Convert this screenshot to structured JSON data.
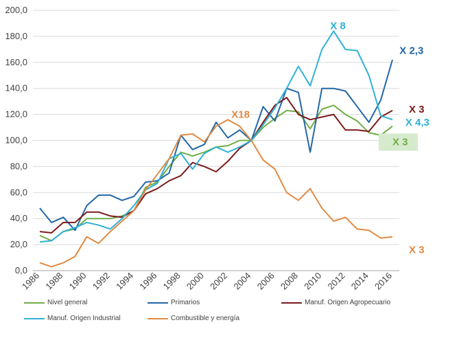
{
  "chart_data": {
    "type": "line",
    "title": "",
    "xlabel": "",
    "ylabel": "",
    "ylim": [
      0,
      200
    ],
    "y_ticks": [
      "0,0",
      "20,0",
      "40,0",
      "60,0",
      "80,0",
      "100,0",
      "120,0",
      "140,0",
      "160,0",
      "180,0",
      "200,0"
    ],
    "x_tick_labels": [
      "1986",
      "1988",
      "1990",
      "1992",
      "1994",
      "1996",
      "1998",
      "2000",
      "2002",
      "2004",
      "2006",
      "2008",
      "2010",
      "2012",
      "2014",
      "2016"
    ],
    "x": [
      1986,
      1987,
      1988,
      1989,
      1990,
      1991,
      1992,
      1993,
      1994,
      1995,
      1996,
      1997,
      1998,
      1999,
      2000,
      2001,
      2002,
      2003,
      2004,
      2005,
      2006,
      2007,
      2008,
      2009,
      2010,
      2011,
      2012,
      2013,
      2014,
      2015,
      2016
    ],
    "grid": true,
    "legend_position": "bottom",
    "series": [
      {
        "name": "Nivel general",
        "color": "#70ad47",
        "values": [
          27,
          23,
          30,
          32,
          40,
          40,
          40,
          42,
          46,
          64,
          68,
          80,
          91,
          88,
          91,
          95,
          96,
          100,
          100,
          110,
          117,
          123,
          122,
          109,
          124,
          127,
          120,
          115,
          106,
          104,
          111
        ]
      },
      {
        "name": "Primarios",
        "color": "#2266a6",
        "values": [
          48,
          37,
          41,
          31,
          50,
          58,
          58,
          54,
          57,
          68,
          69,
          75,
          104,
          93,
          97,
          114,
          102,
          108,
          100,
          126,
          115,
          140,
          137,
          91,
          140,
          140,
          138,
          126,
          114,
          131,
          162
        ]
      },
      {
        "name": "Manuf. Origen Agropecuario",
        "color": "#7b1a1a",
        "values": [
          30,
          29,
          37,
          37,
          45,
          45,
          42,
          41,
          46,
          59,
          63,
          69,
          73,
          83,
          80,
          76,
          84,
          94,
          100,
          114,
          127,
          133,
          120,
          116,
          118,
          120,
          108,
          108,
          107,
          118,
          123
        ]
      },
      {
        "name": "Manuf. Origen Industrial",
        "color": "#2fb1d6",
        "values": [
          22,
          23,
          30,
          33,
          37,
          35,
          32,
          40,
          50,
          62,
          67,
          86,
          90,
          78,
          90,
          95,
          91,
          95,
          100,
          112,
          125,
          140,
          157,
          142,
          170,
          184,
          170,
          169,
          150,
          119,
          116
        ]
      },
      {
        "name": "Combustible y energía",
        "color": "#e08a43",
        "values": [
          6,
          3,
          6,
          11,
          26,
          21,
          30,
          38,
          46,
          62,
          74,
          86,
          104,
          105,
          99,
          111,
          116,
          111,
          100,
          85,
          78,
          60,
          54,
          63,
          48,
          38,
          41,
          32,
          31,
          25,
          26
        ]
      }
    ],
    "annotations": [
      {
        "text": "X 8",
        "color": "#2fb1d6",
        "x": 2010.7,
        "y": 188
      },
      {
        "text": "X 2,3",
        "color": "#2266a6",
        "x": 2016.6,
        "y": 169
      },
      {
        "text": "X18",
        "color": "#e08a43",
        "x": 2002.3,
        "y": 120
      },
      {
        "text": "X 3",
        "color": "#7b1a1a",
        "x": 2017.4,
        "y": 124
      },
      {
        "text": "X 4,3",
        "color": "#2fb1d6",
        "x": 2017.1,
        "y": 114
      },
      {
        "text": "X 3",
        "color": "#70ad47",
        "x": 2016.0,
        "y": 99,
        "boxed": true,
        "box_color": "#d6ebcd"
      },
      {
        "text": "X 3",
        "color": "#e08a43",
        "x": 2017.4,
        "y": 16
      }
    ]
  }
}
